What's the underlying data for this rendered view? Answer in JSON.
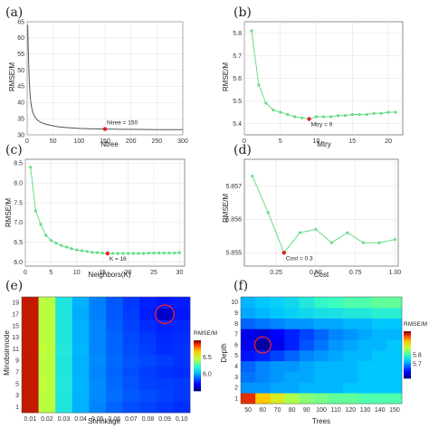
{
  "chart_data": [
    {
      "id": "a",
      "panel_label": "(a)",
      "type": "line",
      "xlabel": "Ntree",
      "ylabel": "RMSE/M",
      "xlim": [
        0,
        300
      ],
      "ylim": [
        30,
        65
      ],
      "xticks": [
        0,
        50,
        100,
        150,
        200,
        250,
        300
      ],
      "yticks": [
        30,
        35,
        40,
        45,
        50,
        55,
        60,
        65
      ],
      "line_color": "#555555",
      "marker": false,
      "x": [
        1,
        2,
        3,
        4,
        5,
        6,
        8,
        10,
        12,
        15,
        20,
        25,
        30,
        40,
        50,
        60,
        80,
        100,
        120,
        150,
        180,
        200,
        250,
        300
      ],
      "y": [
        64,
        58,
        52,
        47,
        44,
        41.5,
        39,
        37.5,
        36.5,
        35.5,
        34.5,
        34,
        33.6,
        33.1,
        32.8,
        32.5,
        32.2,
        32,
        31.9,
        31.8,
        31.7,
        31.7,
        31.6,
        31.6
      ],
      "highlight": {
        "x": 150,
        "y": 31.8,
        "label": "Ntree = 150"
      }
    },
    {
      "id": "b",
      "panel_label": "(b)",
      "type": "line",
      "xlabel": "Mtry",
      "ylabel": "RMSE/M",
      "xlim": [
        0,
        22
      ],
      "ylim": [
        5.35,
        5.85
      ],
      "xticks": [
        0,
        5,
        10,
        15,
        20
      ],
      "yticks": [
        5.4,
        5.5,
        5.6,
        5.7,
        5.8
      ],
      "line_color": "#66dd88",
      "marker": true,
      "x": [
        1,
        2,
        3,
        4,
        5,
        6,
        7,
        8,
        9,
        10,
        11,
        12,
        13,
        14,
        15,
        16,
        17,
        18,
        19,
        20,
        21
      ],
      "y": [
        5.81,
        5.57,
        5.49,
        5.46,
        5.45,
        5.44,
        5.43,
        5.425,
        5.42,
        5.43,
        5.43,
        5.43,
        5.435,
        5.435,
        5.44,
        5.44,
        5.44,
        5.445,
        5.445,
        5.45,
        5.45
      ],
      "highlight": {
        "x": 9,
        "y": 5.42,
        "label": "Mtry = 9"
      }
    },
    {
      "id": "c",
      "panel_label": "(c)",
      "type": "line",
      "xlabel": "Neighbors(K)",
      "ylabel": "RMSE/M",
      "xlim": [
        0,
        31
      ],
      "ylim": [
        5.9,
        8.6
      ],
      "xticks": [
        0,
        5,
        10,
        15,
        20,
        25,
        30
      ],
      "yticks": [
        6.0,
        6.5,
        7.0,
        7.5,
        8.0,
        8.5
      ],
      "line_color": "#66dd88",
      "marker": true,
      "x": [
        1,
        2,
        3,
        4,
        5,
        6,
        7,
        8,
        9,
        10,
        11,
        12,
        13,
        14,
        15,
        16,
        17,
        18,
        19,
        20,
        21,
        22,
        23,
        24,
        25,
        26,
        27,
        28,
        29,
        30
      ],
      "y": [
        8.4,
        7.3,
        6.95,
        6.68,
        6.55,
        6.48,
        6.42,
        6.38,
        6.34,
        6.31,
        6.29,
        6.27,
        6.25,
        6.24,
        6.23,
        6.22,
        6.22,
        6.22,
        6.22,
        6.22,
        6.22,
        6.22,
        6.22,
        6.23,
        6.23,
        6.23,
        6.23,
        6.23,
        6.23,
        6.24
      ],
      "highlight": {
        "x": 16,
        "y": 6.22,
        "label": "K = 16"
      }
    },
    {
      "id": "d",
      "panel_label": "(d)",
      "type": "line",
      "xlabel": "Cost",
      "ylabel": "RMSE/M",
      "xlim": [
        0.05,
        1.02
      ],
      "ylim": [
        5.8546,
        5.8578
      ],
      "xticks": [
        0.25,
        0.5,
        0.75,
        1.0
      ],
      "xtick_labels": [
        "0.25",
        "0.50",
        "0.75",
        "1.00"
      ],
      "yticks": [
        5.855,
        5.856,
        5.857
      ],
      "extra_ytick_label": "5.857",
      "line_color": "#66dd88",
      "marker": true,
      "x": [
        0.1,
        0.2,
        0.3,
        0.4,
        0.5,
        0.6,
        0.7,
        0.8,
        0.9,
        1.0
      ],
      "y": [
        5.8573,
        5.8562,
        5.855,
        5.8556,
        5.8557,
        5.8553,
        5.8556,
        5.8553,
        5.8553,
        5.8554
      ],
      "highlight": {
        "x": 0.3,
        "y": 5.855,
        "label": "Cost = 0.3"
      }
    },
    {
      "id": "e",
      "panel_label": "(e)",
      "type": "heatmap",
      "xlabel": "Shrinkage",
      "ylabel": "Minobsinnode",
      "x_categories": [
        "0.01",
        "0.02",
        "0.03",
        "0.04",
        "0.05",
        "0.06",
        "0.07",
        "0.08",
        "0.09",
        "0.10"
      ],
      "y_categories": [
        "1",
        "3",
        "5",
        "7",
        "9",
        "11",
        "13",
        "15",
        "17",
        "19"
      ],
      "colorbar_title": "RMSE/M",
      "colorbar_ticks": [
        6.0,
        6.5
      ],
      "colorscale_range": [
        5.5,
        7.0
      ],
      "highlight_cell": {
        "x": "0.09",
        "y": "17"
      },
      "highlight_color": "#ff2222",
      "values": [
        [
          6.95,
          6.45,
          6.15,
          6.0,
          5.92,
          5.86,
          5.82,
          5.8,
          5.78,
          5.76
        ],
        [
          6.95,
          6.45,
          6.15,
          6.0,
          5.93,
          5.88,
          5.84,
          5.82,
          5.8,
          5.78
        ],
        [
          6.95,
          6.46,
          6.16,
          6.01,
          5.93,
          5.87,
          5.83,
          5.8,
          5.79,
          5.78
        ],
        [
          6.95,
          6.45,
          6.15,
          6.0,
          5.92,
          5.86,
          5.82,
          5.79,
          5.77,
          5.76
        ],
        [
          6.95,
          6.45,
          6.15,
          6.0,
          5.93,
          5.87,
          5.83,
          5.81,
          5.79,
          5.77
        ],
        [
          6.95,
          6.46,
          6.16,
          6.01,
          5.92,
          5.86,
          5.82,
          5.79,
          5.76,
          5.77
        ],
        [
          6.95,
          6.45,
          6.15,
          6.0,
          5.92,
          5.86,
          5.81,
          5.78,
          5.75,
          5.76
        ],
        [
          6.95,
          6.45,
          6.15,
          6.0,
          5.92,
          5.85,
          5.8,
          5.76,
          5.74,
          5.75
        ],
        [
          6.95,
          6.45,
          6.15,
          5.99,
          5.91,
          5.84,
          5.79,
          5.73,
          5.6,
          5.72
        ],
        [
          6.95,
          6.45,
          6.15,
          6.0,
          5.91,
          5.84,
          5.78,
          5.74,
          5.72,
          5.73
        ]
      ]
    },
    {
      "id": "f",
      "panel_label": "(f)",
      "type": "heatmap",
      "xlabel": "Trees",
      "ylabel": "Depth",
      "x_categories": [
        "50",
        "60",
        "70",
        "80",
        "90",
        "100",
        "110",
        "120",
        "130",
        "140",
        "150"
      ],
      "y_categories": [
        "1",
        "2",
        "3",
        "4",
        "5",
        "6",
        "7",
        "8",
        "9",
        "10"
      ],
      "colorbar_title": "RMSE/M",
      "colorbar_ticks": [
        5.8,
        5.7
      ],
      "colorscale_range": [
        5.55,
        6.05
      ],
      "highlight_cell": {
        "x": "60",
        "y": "6"
      },
      "highlight_color": "#ff2222",
      "values": [
        [
          6.02,
          5.95,
          5.9,
          5.86,
          5.84,
          5.83,
          5.82,
          5.82,
          5.81,
          5.81,
          5.81
        ],
        [
          5.7,
          5.7,
          5.71,
          5.71,
          5.72,
          5.72,
          5.72,
          5.73,
          5.73,
          5.73,
          5.73
        ],
        [
          5.68,
          5.69,
          5.7,
          5.71,
          5.71,
          5.72,
          5.72,
          5.72,
          5.73,
          5.73,
          5.73
        ],
        [
          5.67,
          5.69,
          5.7,
          5.7,
          5.71,
          5.72,
          5.72,
          5.72,
          5.73,
          5.73,
          5.73
        ],
        [
          5.62,
          5.63,
          5.65,
          5.67,
          5.69,
          5.7,
          5.71,
          5.72,
          5.72,
          5.73,
          5.73
        ],
        [
          5.6,
          5.56,
          5.6,
          5.63,
          5.66,
          5.68,
          5.7,
          5.71,
          5.72,
          5.72,
          5.73
        ],
        [
          5.6,
          5.59,
          5.61,
          5.63,
          5.65,
          5.67,
          5.69,
          5.7,
          5.71,
          5.72,
          5.72
        ],
        [
          5.67,
          5.68,
          5.69,
          5.7,
          5.7,
          5.71,
          5.71,
          5.72,
          5.72,
          5.73,
          5.73
        ],
        [
          5.71,
          5.72,
          5.73,
          5.74,
          5.75,
          5.76,
          5.76,
          5.77,
          5.77,
          5.78,
          5.78
        ],
        [
          5.72,
          5.73,
          5.74,
          5.75,
          5.77,
          5.79,
          5.8,
          5.81,
          5.81,
          5.82,
          5.82
        ]
      ]
    }
  ],
  "colors": {
    "highlight_point": "#dd2222",
    "frame": "#444444",
    "grid": "#d8d8d8"
  }
}
